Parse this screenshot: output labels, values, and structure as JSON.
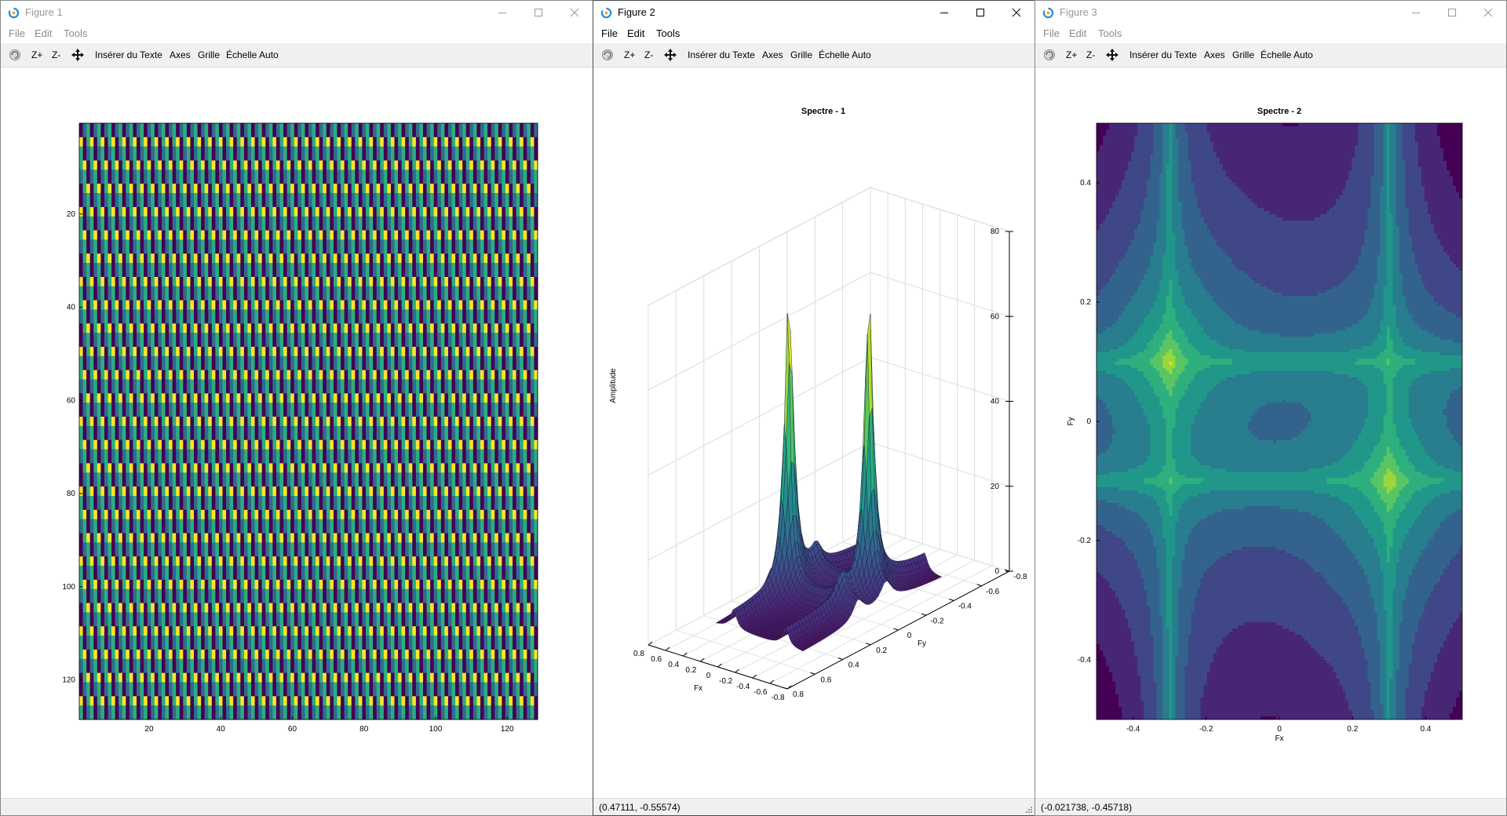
{
  "windows": [
    {
      "title": "Figure 1",
      "menus": [
        "File",
        "Edit",
        "Tools"
      ],
      "toolbar": {
        "zoom_in": "Z+",
        "zoom_out": "Z-",
        "insert_text": "Insérer du Texte",
        "axes": "Axes",
        "grid": "Grille",
        "autoscale": "Échelle Auto"
      },
      "status": ""
    },
    {
      "title": "Figure 2",
      "menus": [
        "File",
        "Edit",
        "Tools"
      ],
      "toolbar": {
        "zoom_in": "Z+",
        "zoom_out": "Z-",
        "insert_text": "Insérer du Texte",
        "axes": "Axes",
        "grid": "Grille",
        "autoscale": "Échelle Auto"
      },
      "status": "(0.47111, -0.55574)"
    },
    {
      "title": "Figure 3",
      "menus": [
        "File",
        "Edit",
        "Tools"
      ],
      "toolbar": {
        "zoom_in": "Z+",
        "zoom_out": "Z-",
        "insert_text": "Insérer du Texte",
        "axes": "Axes",
        "grid": "Grille",
        "autoscale": "Échelle Auto"
      },
      "status": "(-0.021738, -0.45718)"
    }
  ],
  "colors": {
    "viridis_dark": "#440154",
    "viridis_blue": "#31688e",
    "viridis_teal": "#21908d",
    "viridis_green": "#5ec962",
    "viridis_yellow": "#fde725",
    "toolbar_bg": "#f0f0f0"
  },
  "icons": [
    "app-logo-icon",
    "minimize-icon",
    "maximize-icon",
    "close-icon",
    "rotate-icon",
    "pan-icon"
  ],
  "chart_data": [
    {
      "type": "heatmap",
      "title": "",
      "description_values": "diagonal striped pattern (cos grating), values cycle dark-purple / blue / green / yellow",
      "x_ticks": [
        20,
        40,
        60,
        80,
        100,
        120
      ],
      "y_ticks": [
        20,
        40,
        60,
        80,
        100,
        120
      ],
      "xlim": [
        0.5,
        128.5
      ],
      "ylim": [
        0.5,
        128.5
      ],
      "y_reversed": true,
      "xlabel": "",
      "ylabel": "",
      "colormap": "viridis"
    },
    {
      "type": "surface",
      "title": "Spectre - 1",
      "xlabel": "Fx",
      "ylabel": "Fy",
      "zlabel": "Amplitude",
      "x_ticks": [
        "0.8",
        "0.6",
        "0.4",
        "0.2",
        "0",
        "-0.2",
        "-0.4",
        "-0.6",
        "-0.8"
      ],
      "y_ticks": [
        "-0.8",
        "-0.6",
        "-0.4",
        "-0.2",
        "0",
        "0.2",
        "0.4",
        "0.6",
        "0.8"
      ],
      "z_ticks": [
        "0",
        "20",
        "40",
        "60",
        "80"
      ],
      "peaks": [
        {
          "fx": 0.3,
          "fy": -0.1,
          "amplitude": 64
        },
        {
          "fx": -0.3,
          "fy": 0.1,
          "amplitude": 64
        }
      ],
      "grid": true,
      "colormap": "viridis"
    },
    {
      "type": "contour",
      "title": "Spectre - 2",
      "xlabel": "Fx",
      "ylabel": "Fy",
      "x_ticks": [
        "-0.4",
        "-0.2",
        "0",
        "0.2",
        "0.4"
      ],
      "y_ticks": [
        "-0.4",
        "-0.2",
        "0",
        "0.2",
        "0.4"
      ],
      "xlim": [
        -0.5,
        0.5
      ],
      "ylim": [
        -0.5,
        0.5
      ],
      "peaks": [
        {
          "fx": -0.3,
          "fy": 0.1
        },
        {
          "fx": 0.3,
          "fy": -0.1
        }
      ],
      "colormap": "viridis"
    }
  ]
}
